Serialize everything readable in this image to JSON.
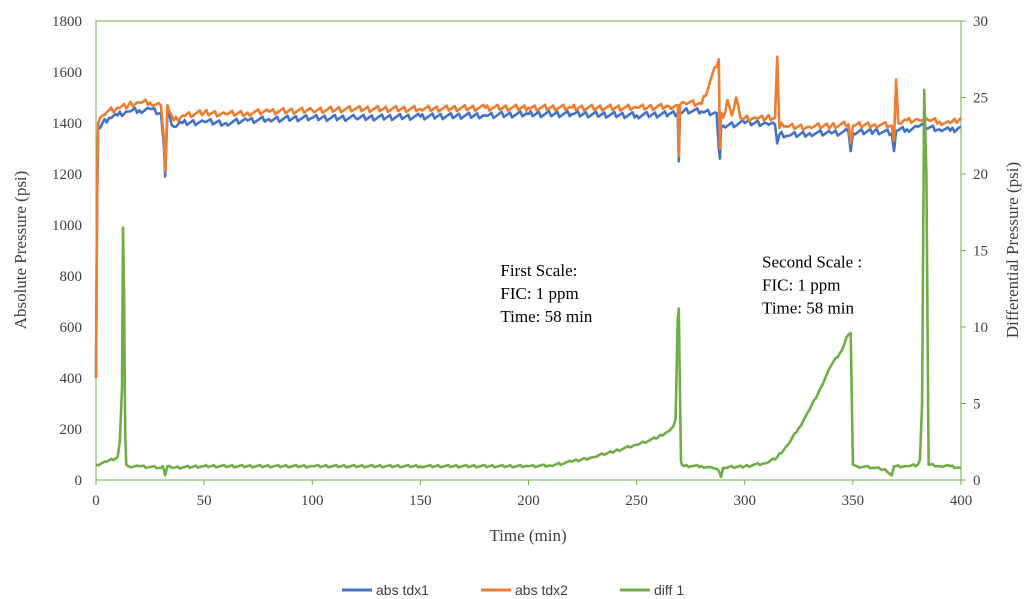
{
  "chart_data": {
    "type": "line",
    "xlabel": "Time (min)",
    "ylabel": "Absolute Pressure (psi)",
    "y2label": "Differential Pressure (psi)",
    "xlim": [
      0,
      400
    ],
    "ylim": [
      0,
      1800
    ],
    "y2lim": [
      0,
      30
    ],
    "x_ticks": [
      0,
      50,
      100,
      150,
      200,
      250,
      300,
      350,
      400
    ],
    "y_ticks": [
      0,
      200,
      400,
      600,
      800,
      1000,
      1200,
      1400,
      1600,
      1800
    ],
    "y2_ticks": [
      0,
      5,
      10,
      15,
      20,
      25,
      30
    ],
    "grid": false,
    "legend_position": "bottom",
    "annotations": [
      {
        "lines": [
          "First Scale:",
          "FIC: 1 ppm",
          "Time: 58 min"
        ],
        "x": 187,
        "y": 800
      },
      {
        "lines": [
          "Second Scale :",
          "FIC: 1 ppm",
          "Time: 58 min"
        ],
        "x": 308,
        "y": 833
      }
    ],
    "series": [
      {
        "name": "abs tdx1",
        "axis": "left",
        "color": "#4472C4",
        "x": [
          0,
          0.5,
          1,
          3,
          6,
          10,
          15,
          20,
          25,
          30,
          31.5,
          32,
          33,
          36,
          40,
          50,
          60,
          70,
          80,
          100,
          120,
          150,
          180,
          200,
          220,
          250,
          265,
          269,
          269.5,
          270,
          272,
          280,
          287,
          288,
          288.5,
          289,
          290,
          300,
          310,
          314,
          315,
          316,
          320,
          330,
          340,
          348,
          349,
          350,
          360,
          368,
          369,
          370,
          375,
          380,
          383,
          385,
          390,
          395,
          400
        ],
        "y": [
          400,
          1100,
          1375,
          1400,
          1420,
          1430,
          1445,
          1450,
          1455,
          1440,
          1300,
          1190,
          1440,
          1385,
          1400,
          1405,
          1400,
          1410,
          1415,
          1420,
          1420,
          1425,
          1430,
          1435,
          1435,
          1430,
          1435,
          1440,
          1250,
          1440,
          1450,
          1445,
          1440,
          1300,
          1260,
          1380,
          1390,
          1400,
          1400,
          1395,
          1320,
          1355,
          1350,
          1360,
          1360,
          1365,
          1290,
          1360,
          1370,
          1360,
          1290,
          1370,
          1375,
          1385,
          1390,
          1380,
          1375,
          1370,
          1385
        ]
      },
      {
        "name": "abs tdx2",
        "axis": "left",
        "color": "#ED7D31",
        "x": [
          0,
          0.5,
          1,
          3,
          6,
          10,
          15,
          20,
          25,
          30,
          31.5,
          32,
          33,
          36,
          40,
          50,
          60,
          70,
          80,
          100,
          120,
          150,
          180,
          200,
          220,
          250,
          265,
          269,
          269.5,
          270,
          272,
          280,
          288,
          288.5,
          289,
          290,
          292,
          294,
          296,
          298,
          300,
          305,
          310,
          314,
          315,
          316,
          317,
          320,
          330,
          340,
          348,
          349,
          350,
          360,
          368,
          369,
          370,
          371,
          375,
          380,
          383,
          385,
          390,
          395,
          400
        ],
        "y": [
          400,
          1120,
          1400,
          1430,
          1450,
          1460,
          1470,
          1480,
          1480,
          1470,
          1330,
          1210,
          1470,
          1410,
          1430,
          1440,
          1435,
          1440,
          1445,
          1450,
          1455,
          1455,
          1460,
          1460,
          1460,
          1460,
          1465,
          1470,
          1270,
          1470,
          1480,
          1475,
          1650,
          1300,
          1440,
          1420,
          1490,
          1430,
          1500,
          1420,
          1420,
          1420,
          1420,
          1420,
          1660,
          1380,
          1400,
          1385,
          1385,
          1390,
          1395,
          1320,
          1390,
          1395,
          1390,
          1330,
          1570,
          1400,
          1410,
          1415,
          1405,
          1410,
          1405,
          1400,
          1420
        ]
      },
      {
        "name": "diff 1",
        "axis": "right",
        "color": "#70AD47",
        "x": [
          0,
          5,
          10,
          11,
          12,
          12.5,
          13,
          13.5,
          14,
          15,
          20,
          30,
          31,
          32,
          33,
          35,
          50,
          100,
          150,
          200,
          210,
          220,
          230,
          240,
          250,
          260,
          265,
          267,
          268,
          269,
          269.5,
          270,
          270.5,
          271,
          272,
          275,
          280,
          285,
          288,
          289,
          290,
          300,
          310,
          315,
          320,
          325,
          330,
          335,
          340,
          345,
          347,
          348,
          349,
          350,
          352,
          360,
          365,
          368,
          369,
          370,
          375,
          380,
          381,
          382,
          383,
          384,
          385,
          390,
          395,
          400
        ],
        "y": [
          1.0,
          1.2,
          1.5,
          2.5,
          6,
          16.5,
          12,
          3,
          1.0,
          0.9,
          0.9,
          0.8,
          0.9,
          0.3,
          0.9,
          0.8,
          0.9,
          0.9,
          0.9,
          0.9,
          0.95,
          1.2,
          1.5,
          1.9,
          2.3,
          2.8,
          3.2,
          3.5,
          4.0,
          10.5,
          11.2,
          6,
          1.2,
          1.0,
          0.9,
          0.9,
          0.9,
          0.8,
          0.6,
          0.2,
          0.8,
          0.9,
          1.1,
          1.5,
          2.3,
          3.4,
          4.6,
          6.0,
          7.5,
          8.5,
          9.3,
          9.5,
          9.6,
          1.0,
          0.9,
          0.8,
          0.7,
          0.3,
          0.9,
          0.9,
          0.9,
          1.0,
          1.3,
          5,
          25.5,
          20,
          1.0,
          0.9,
          0.9,
          0.8
        ]
      }
    ]
  }
}
